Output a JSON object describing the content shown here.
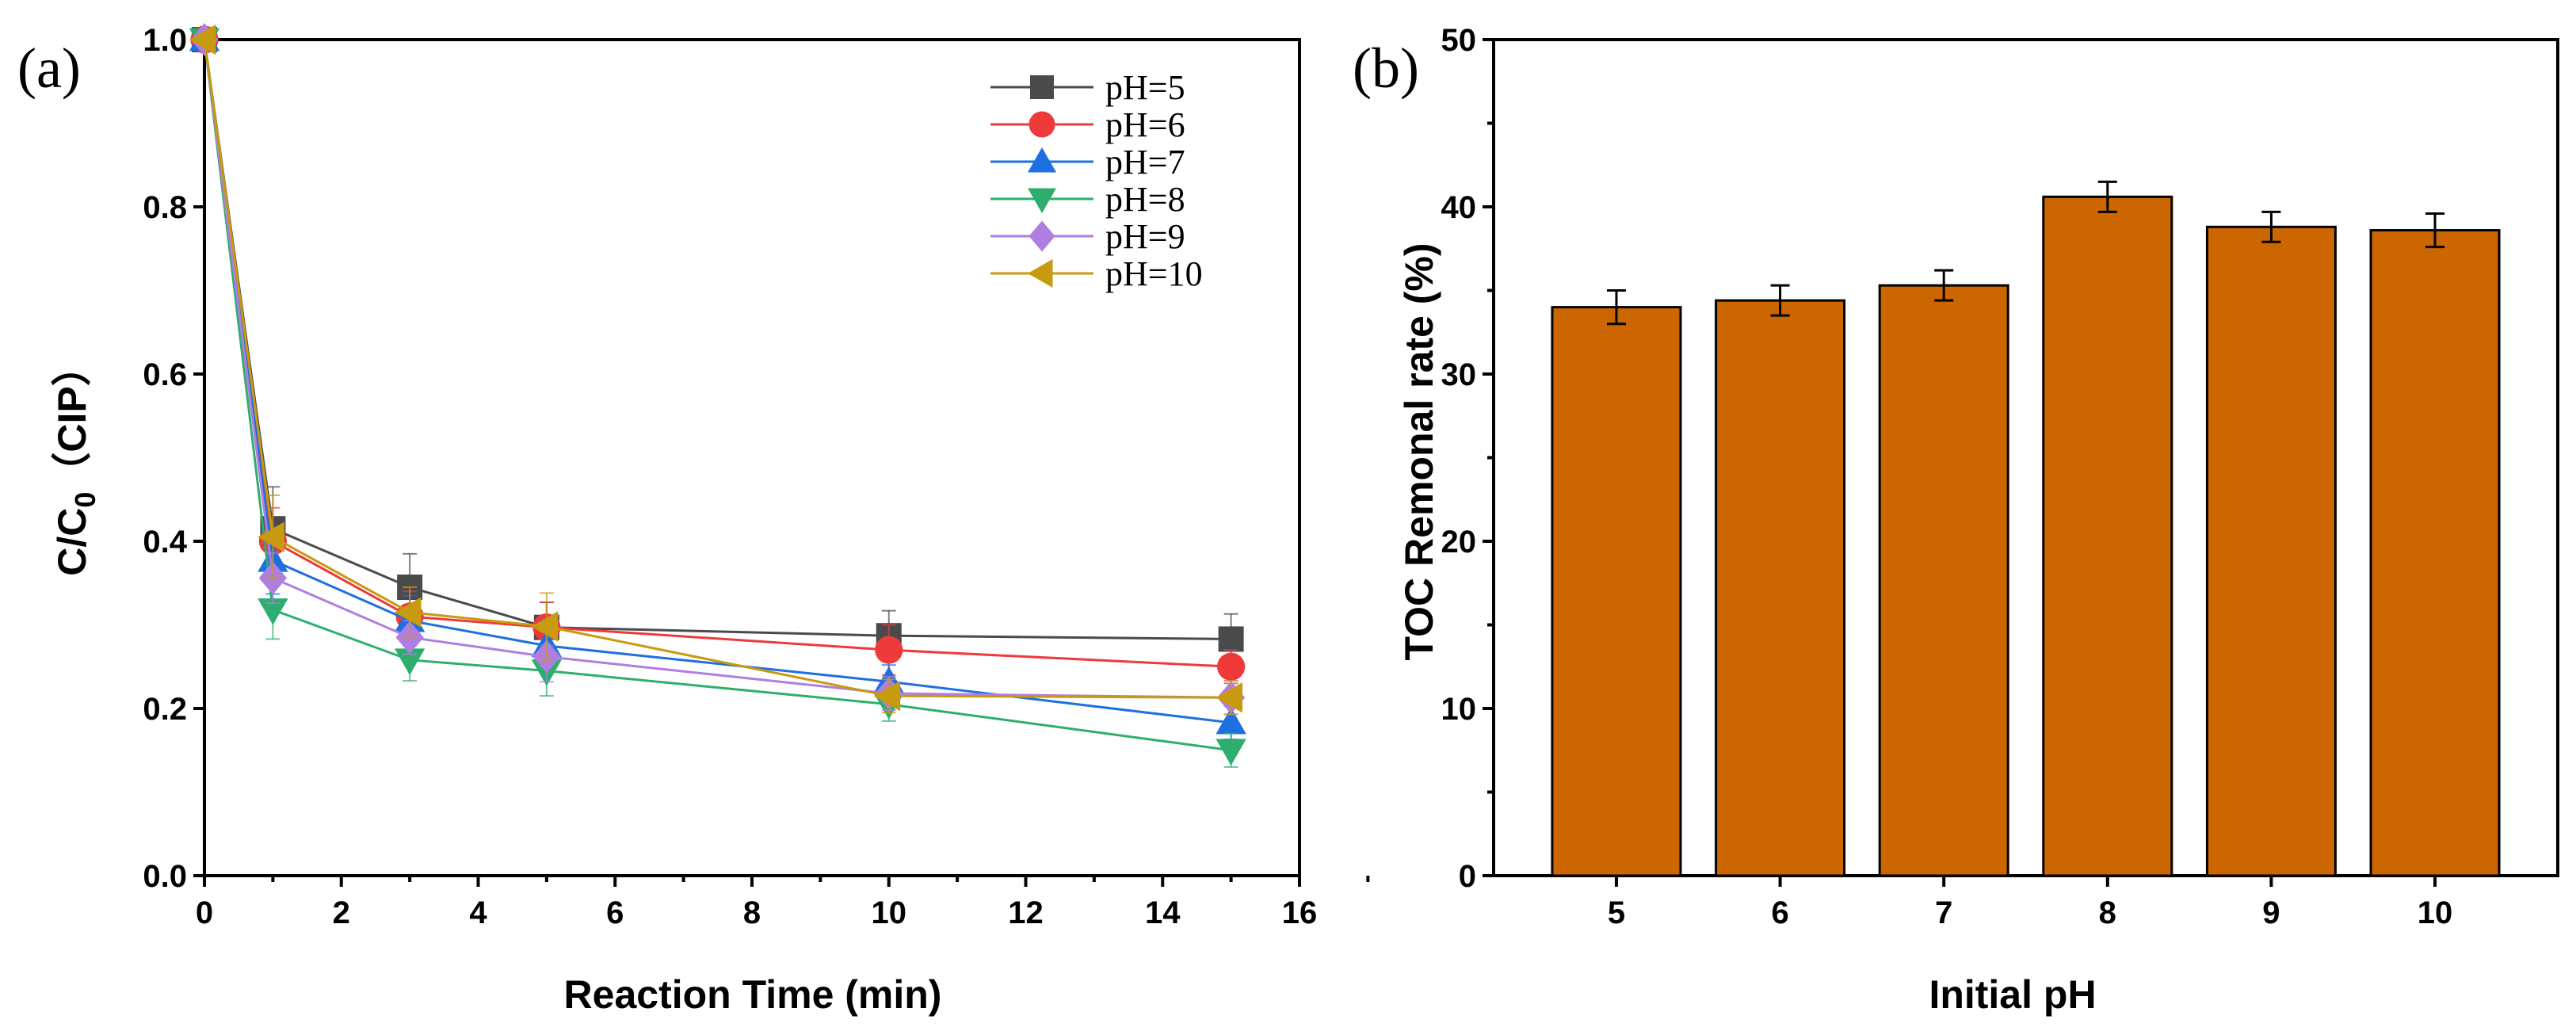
{
  "figure": {
    "panel_a_label": "(a)",
    "panel_b_label": "(b)"
  },
  "chart_data": [
    {
      "type": "line",
      "panel": "(a)",
      "xlabel": "Reaction Time (min)",
      "ylabel_main": "C/C",
      "ylabel_sub": "0",
      "ylabel_suffix": "（CIP）",
      "xlim": [
        0,
        16
      ],
      "ylim": [
        0.0,
        1.0
      ],
      "xticks": [
        0,
        2,
        4,
        6,
        8,
        10,
        12,
        14,
        16
      ],
      "yticks": [
        "0.0",
        "0.2",
        "0.4",
        "0.6",
        "0.8",
        "1.0"
      ],
      "x": [
        0,
        1,
        3,
        5,
        10,
        15
      ],
      "legend_position": "top-right",
      "series": [
        {
          "name": "pH=5",
          "color": "#4a4a4a",
          "marker": "square",
          "values": [
            1.0,
            0.415,
            0.345,
            0.297,
            0.287,
            0.283
          ],
          "errors": [
            0,
            0.05,
            0.04,
            0.03,
            0.03,
            0.03
          ]
        },
        {
          "name": "pH=6",
          "color": "#ee3a3a",
          "marker": "circle",
          "values": [
            1.0,
            0.4,
            0.31,
            0.297,
            0.27,
            0.25
          ],
          "errors": [
            0,
            0.04,
            0.03,
            0.03,
            0.03,
            0.02
          ]
        },
        {
          "name": "pH=7",
          "color": "#1e6fe0",
          "marker": "triangle-up",
          "values": [
            1.0,
            0.377,
            0.305,
            0.275,
            0.232,
            0.183
          ],
          "errors": [
            0,
            0.04,
            0.03,
            0.03,
            0.02,
            0.02
          ]
        },
        {
          "name": "pH=8",
          "color": "#2eae6e",
          "marker": "triangle-down",
          "values": [
            1.0,
            0.318,
            0.258,
            0.245,
            0.205,
            0.15
          ],
          "errors": [
            0,
            0.035,
            0.025,
            0.03,
            0.02,
            0.02
          ]
        },
        {
          "name": "pH=9",
          "color": "#b07ee0",
          "marker": "diamond",
          "values": [
            1.0,
            0.356,
            0.285,
            0.262,
            0.218,
            0.213
          ],
          "errors": [
            0,
            0.03,
            0.02,
            0.03,
            0.02,
            0.02
          ]
        },
        {
          "name": "pH=10",
          "color": "#c79a10",
          "marker": "triangle-left",
          "values": [
            1.0,
            0.405,
            0.315,
            0.298,
            0.215,
            0.213
          ],
          "errors": [
            0,
            0.05,
            0.03,
            0.04,
            0.02,
            0.02
          ]
        }
      ]
    },
    {
      "type": "bar",
      "panel": "(b)",
      "xlabel": "Initial pH",
      "ylabel": "TOC Remonal rate (%)",
      "ylim": [
        0,
        50
      ],
      "yticks": [
        "0",
        "10",
        "20",
        "30",
        "40",
        "50"
      ],
      "categories": [
        "5",
        "6",
        "7",
        "8",
        "9",
        "10"
      ],
      "values": [
        34.0,
        34.4,
        35.3,
        40.6,
        38.8,
        38.6
      ],
      "errors": [
        1.0,
        0.9,
        0.9,
        0.9,
        0.9,
        1.0
      ],
      "bar_color": "#cc6600"
    }
  ]
}
